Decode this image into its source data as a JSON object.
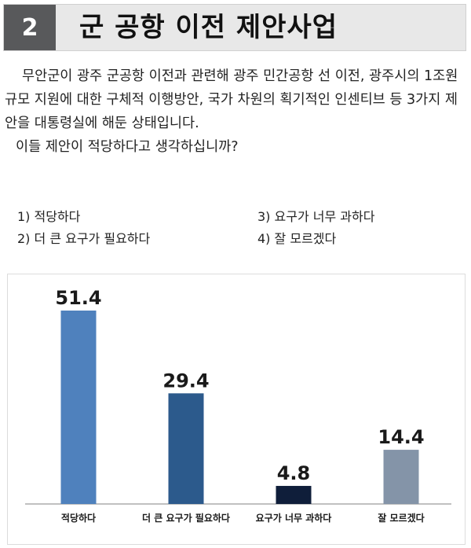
{
  "header": {
    "number": "2",
    "title": "군 공항 이전 제안사업"
  },
  "question": {
    "line1": "무안군이 광주 군공항 이전과 관련해 광주 민간공항 선 이전, 광주시의 1조원 규모 지원에 대한 구체적 이행방안, 국가 차원의 획기적인 인센티브 등 3가지 제안을 대통령실에 해둔 상태입니다.",
    "line2": "이들 제안이 적당하다고 생각하십니까?"
  },
  "options": [
    {
      "label": "1) 적당하다"
    },
    {
      "label": "3) 요구가 너무 과하다"
    },
    {
      "label": "2) 더 큰 요구가 필요하다"
    },
    {
      "label": "4) 잘 모르겠다"
    }
  ],
  "chart_data": {
    "type": "bar",
    "categories": [
      "적당하다",
      "더 큰 요구가 필요하다",
      "요구가 너무 과하다",
      "잘 모르겠다"
    ],
    "values": [
      51.4,
      29.4,
      4.8,
      14.4
    ],
    "value_labels": [
      "51.4",
      "29.4",
      "4.8",
      "14.4"
    ],
    "colors": [
      "#4f81bd",
      "#2c5a8c",
      "#0f1e3a",
      "#8494a8"
    ],
    "ylim": [
      0,
      60
    ],
    "grid": false,
    "legend": "none"
  }
}
